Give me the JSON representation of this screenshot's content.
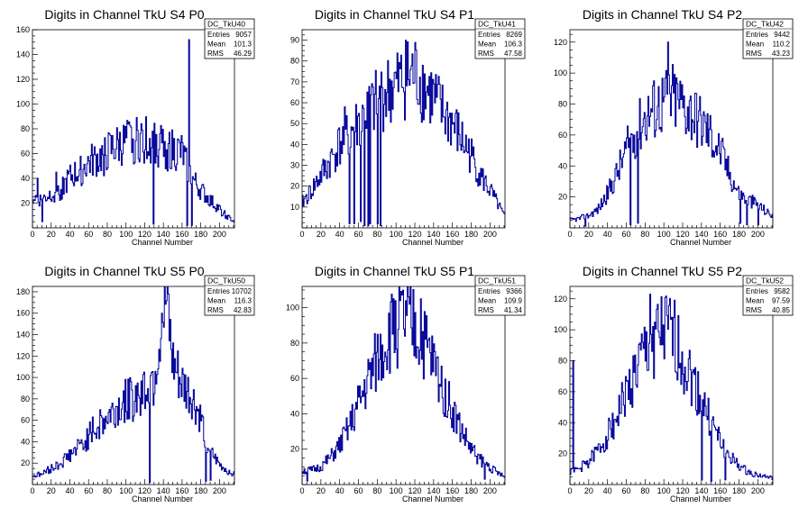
{
  "chart_data": [
    {
      "type": "histogram",
      "name": "DC_TkU40",
      "title": "Digits in Channel TkU S4 P0",
      "xlabel": "Channel Number",
      "ylabel": "",
      "xlim": [
        0,
        216
      ],
      "ylim": [
        0,
        160
      ],
      "xticks": [
        0,
        20,
        40,
        60,
        80,
        100,
        120,
        140,
        160,
        180,
        200
      ],
      "yticks": [
        20,
        40,
        60,
        80,
        100,
        120,
        140,
        160
      ],
      "stats": [
        {
          "label": "Entries",
          "value": "9057"
        },
        {
          "label": "Mean",
          "value": "101.3"
        },
        {
          "label": "RMS",
          "value": "46.29"
        }
      ],
      "anchors": [
        [
          0,
          25
        ],
        [
          10,
          22
        ],
        [
          20,
          28
        ],
        [
          30,
          30
        ],
        [
          40,
          40
        ],
        [
          50,
          45
        ],
        [
          60,
          52
        ],
        [
          70,
          55
        ],
        [
          80,
          60
        ],
        [
          90,
          65
        ],
        [
          100,
          68
        ],
        [
          110,
          70
        ],
        [
          120,
          72
        ],
        [
          130,
          68
        ],
        [
          140,
          65
        ],
        [
          150,
          62
        ],
        [
          160,
          60
        ],
        [
          170,
          40
        ],
        [
          180,
          30
        ],
        [
          190,
          22
        ],
        [
          200,
          15
        ],
        [
          210,
          8
        ],
        [
          216,
          5
        ]
      ],
      "spikes": [
        [
          167,
          152
        ],
        [
          5,
          40
        ],
        [
          10,
          5
        ],
        [
          25,
          45
        ],
        [
          129,
          3
        ],
        [
          165,
          2
        ],
        [
          170,
          2
        ]
      ],
      "seed": 40
    },
    {
      "type": "histogram",
      "name": "DC_TkU41",
      "title": "Digits in Channel TkU S4 P1",
      "xlabel": "Channel Number",
      "ylabel": "",
      "xlim": [
        0,
        216
      ],
      "ylim": [
        0,
        95
      ],
      "xticks": [
        0,
        20,
        40,
        60,
        80,
        100,
        120,
        140,
        160,
        180,
        200
      ],
      "yticks": [
        10,
        20,
        30,
        40,
        50,
        60,
        70,
        80,
        90
      ],
      "stats": [
        {
          "label": "Entries",
          "value": "8269"
        },
        {
          "label": "Mean",
          "value": "106.3"
        },
        {
          "label": "RMS",
          "value": "47.58"
        }
      ],
      "anchors": [
        [
          0,
          12
        ],
        [
          10,
          18
        ],
        [
          20,
          25
        ],
        [
          30,
          32
        ],
        [
          40,
          40
        ],
        [
          50,
          45
        ],
        [
          60,
          50
        ],
        [
          70,
          55
        ],
        [
          80,
          60
        ],
        [
          90,
          65
        ],
        [
          100,
          68
        ],
        [
          110,
          72
        ],
        [
          120,
          74
        ],
        [
          130,
          68
        ],
        [
          140,
          62
        ],
        [
          150,
          55
        ],
        [
          160,
          50
        ],
        [
          170,
          42
        ],
        [
          180,
          35
        ],
        [
          190,
          25
        ],
        [
          200,
          18
        ],
        [
          210,
          10
        ],
        [
          216,
          5
        ]
      ],
      "spikes": [
        [
          110,
          90
        ],
        [
          45,
          58
        ],
        [
          50,
          2
        ],
        [
          55,
          2
        ],
        [
          62,
          3
        ],
        [
          66,
          1
        ],
        [
          70,
          1
        ],
        [
          72,
          2
        ],
        [
          80,
          2
        ],
        [
          83,
          1
        ]
      ],
      "seed": 41
    },
    {
      "type": "histogram",
      "name": "DC_TkU42",
      "title": "Digits in Channel TkU S4 P2",
      "xlabel": "Channel Number",
      "ylabel": "",
      "xlim": [
        0,
        216
      ],
      "ylim": [
        0,
        128
      ],
      "xticks": [
        0,
        20,
        40,
        60,
        80,
        100,
        120,
        140,
        160,
        180,
        200
      ],
      "yticks": [
        20,
        40,
        60,
        80,
        100,
        120
      ],
      "stats": [
        {
          "label": "Entries",
          "value": "9442"
        },
        {
          "label": "Mean",
          "value": "110.2"
        },
        {
          "label": "RMS",
          "value": "43.23"
        }
      ],
      "anchors": [
        [
          0,
          5
        ],
        [
          10,
          6
        ],
        [
          20,
          8
        ],
        [
          30,
          12
        ],
        [
          40,
          22
        ],
        [
          50,
          35
        ],
        [
          60,
          50
        ],
        [
          70,
          62
        ],
        [
          80,
          72
        ],
        [
          90,
          78
        ],
        [
          100,
          82
        ],
        [
          110,
          85
        ],
        [
          120,
          80
        ],
        [
          130,
          75
        ],
        [
          140,
          68
        ],
        [
          150,
          60
        ],
        [
          160,
          50
        ],
        [
          170,
          35
        ],
        [
          180,
          22
        ],
        [
          190,
          18
        ],
        [
          200,
          15
        ],
        [
          210,
          10
        ],
        [
          216,
          8
        ]
      ],
      "spikes": [
        [
          104,
          120
        ],
        [
          72,
          3
        ],
        [
          16,
          1
        ],
        [
          64,
          2
        ],
        [
          181,
          3
        ],
        [
          188,
          2
        ],
        [
          200,
          2
        ]
      ],
      "seed": 42
    },
    {
      "type": "histogram",
      "name": "DC_TkU50",
      "title": "Digits in Channel TkU S5 P0",
      "xlabel": "Channel Number",
      "ylabel": "",
      "xlim": [
        0,
        216
      ],
      "ylim": [
        0,
        185
      ],
      "xticks": [
        0,
        20,
        40,
        60,
        80,
        100,
        120,
        140,
        160,
        180,
        200
      ],
      "yticks": [
        20,
        40,
        60,
        80,
        100,
        120,
        140,
        160,
        180
      ],
      "stats": [
        {
          "label": "Entries",
          "value": "10702"
        },
        {
          "label": "Mean",
          "value": "116.3"
        },
        {
          "label": "RMS",
          "value": "42.83"
        }
      ],
      "anchors": [
        [
          0,
          8
        ],
        [
          10,
          10
        ],
        [
          20,
          15
        ],
        [
          30,
          20
        ],
        [
          40,
          28
        ],
        [
          50,
          35
        ],
        [
          60,
          45
        ],
        [
          70,
          55
        ],
        [
          80,
          62
        ],
        [
          90,
          70
        ],
        [
          100,
          78
        ],
        [
          110,
          82
        ],
        [
          120,
          90
        ],
        [
          130,
          100
        ],
        [
          137,
          140
        ],
        [
          143,
          165
        ],
        [
          150,
          110
        ],
        [
          160,
          90
        ],
        [
          170,
          80
        ],
        [
          180,
          60
        ],
        [
          190,
          30
        ],
        [
          200,
          18
        ],
        [
          210,
          12
        ],
        [
          216,
          10
        ]
      ],
      "spikes": [
        [
          145,
          178
        ],
        [
          138,
          160
        ],
        [
          125,
          2
        ],
        [
          185,
          3
        ],
        [
          190,
          4
        ]
      ],
      "seed": 50
    },
    {
      "type": "histogram",
      "name": "DC_TkU51",
      "title": "Digits in Channel TkU S5 P1",
      "xlabel": "Channel Number",
      "ylabel": "",
      "xlim": [
        0,
        216
      ],
      "ylim": [
        0,
        112
      ],
      "xticks": [
        0,
        20,
        40,
        60,
        80,
        100,
        120,
        140,
        160,
        180,
        200
      ],
      "yticks": [
        20,
        40,
        60,
        80,
        100
      ],
      "stats": [
        {
          "label": "Entries",
          "value": "9366"
        },
        {
          "label": "Mean",
          "value": "109.9"
        },
        {
          "label": "RMS",
          "value": "41.34"
        }
      ],
      "anchors": [
        [
          0,
          8
        ],
        [
          10,
          8
        ],
        [
          20,
          10
        ],
        [
          30,
          15
        ],
        [
          40,
          22
        ],
        [
          50,
          32
        ],
        [
          60,
          45
        ],
        [
          70,
          58
        ],
        [
          80,
          70
        ],
        [
          90,
          82
        ],
        [
          100,
          90
        ],
        [
          110,
          92
        ],
        [
          120,
          88
        ],
        [
          130,
          80
        ],
        [
          140,
          68
        ],
        [
          150,
          55
        ],
        [
          160,
          42
        ],
        [
          170,
          30
        ],
        [
          180,
          20
        ],
        [
          190,
          14
        ],
        [
          200,
          10
        ],
        [
          210,
          6
        ],
        [
          216,
          4
        ]
      ],
      "spikes": [
        [
          97,
          105
        ],
        [
          126,
          105
        ],
        [
          5,
          2
        ],
        [
          194,
          3
        ]
      ],
      "seed": 51
    },
    {
      "type": "histogram",
      "name": "DC_TkU52",
      "title": "Digits in Channel TkU S5 P2",
      "xlabel": "Channel Number",
      "ylabel": "",
      "xlim": [
        0,
        216
      ],
      "ylim": [
        0,
        128
      ],
      "xticks": [
        0,
        20,
        40,
        60,
        80,
        100,
        120,
        140,
        160,
        180,
        200
      ],
      "yticks": [
        20,
        40,
        60,
        80,
        100,
        120
      ],
      "stats": [
        {
          "label": "Entries",
          "value": "9582"
        },
        {
          "label": "Mean",
          "value": "97.59"
        },
        {
          "label": "RMS",
          "value": "40.85"
        }
      ],
      "anchors": [
        [
          0,
          8
        ],
        [
          10,
          10
        ],
        [
          20,
          15
        ],
        [
          30,
          22
        ],
        [
          40,
          32
        ],
        [
          50,
          45
        ],
        [
          60,
          58
        ],
        [
          70,
          72
        ],
        [
          80,
          85
        ],
        [
          90,
          95
        ],
        [
          100,
          98
        ],
        [
          110,
          95
        ],
        [
          120,
          82
        ],
        [
          130,
          68
        ],
        [
          140,
          55
        ],
        [
          150,
          40
        ],
        [
          160,
          28
        ],
        [
          170,
          18
        ],
        [
          180,
          12
        ],
        [
          190,
          8
        ],
        [
          200,
          6
        ],
        [
          210,
          5
        ],
        [
          216,
          4
        ]
      ],
      "spikes": [
        [
          3,
          80
        ],
        [
          85,
          123
        ],
        [
          140,
          3
        ],
        [
          150,
          2
        ],
        [
          165,
          3
        ]
      ],
      "seed": 52
    }
  ]
}
